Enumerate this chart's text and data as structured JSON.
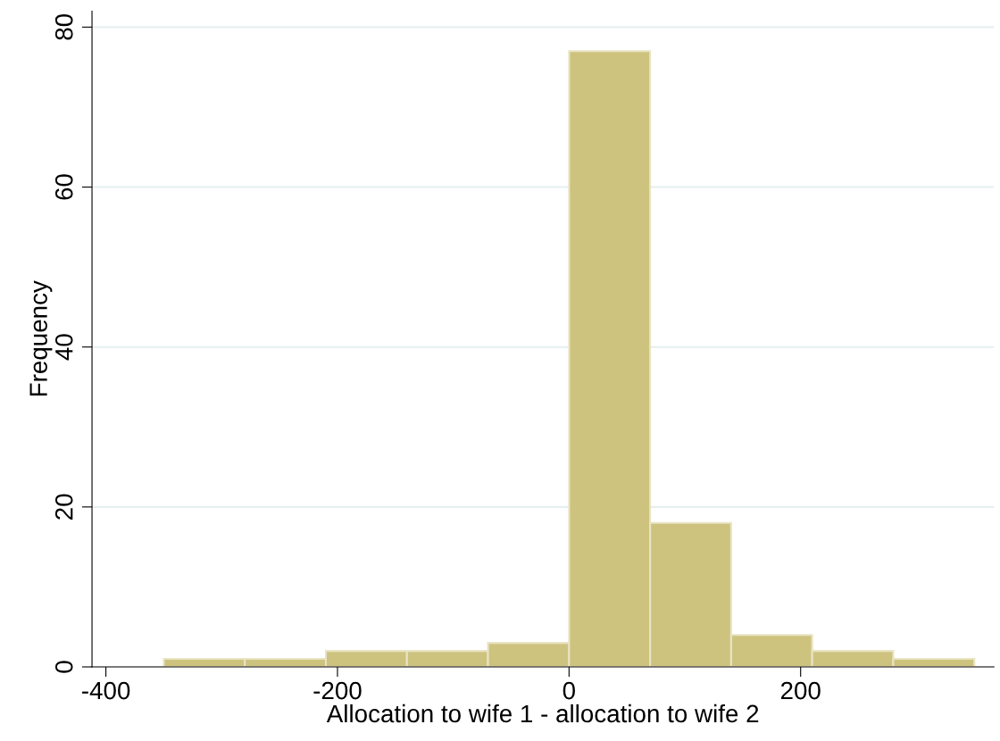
{
  "chart_data": {
    "type": "histogram",
    "xlabel": "Allocation to wife 1 - allocation to wife 2",
    "ylabel": "Frequency",
    "bins": [
      -350,
      -280,
      -210,
      -140,
      -70,
      0,
      70,
      140,
      210,
      280,
      350
    ],
    "values": [
      1,
      1,
      2,
      2,
      3,
      77,
      18,
      4,
      2,
      1
    ],
    "color": "#cdc37f",
    "xlim": [
      -412,
      367
    ],
    "xticks": [
      -400,
      -200,
      0,
      200
    ],
    "ylim": [
      0,
      82
    ],
    "yticks": [
      0,
      20,
      40,
      60,
      80
    ],
    "grid": "y"
  }
}
